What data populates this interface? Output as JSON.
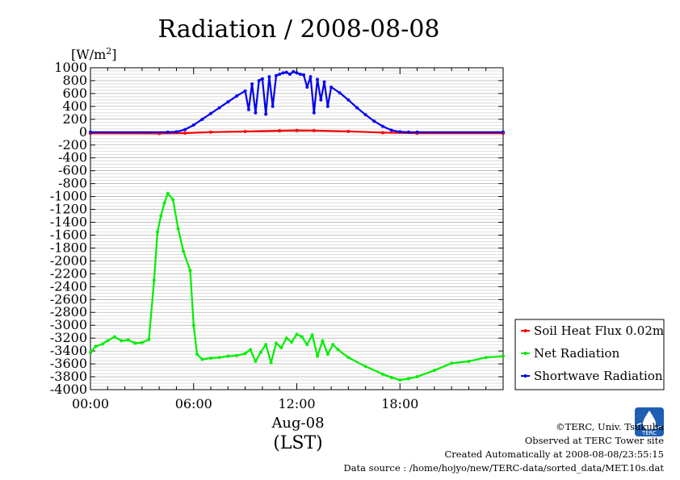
{
  "title": "Radiation / 2008-08-08",
  "y_unit_label": "[W/m",
  "y_unit_sup": "2",
  "y_unit_close": "]",
  "x_date_label": "Aug-08",
  "x_tz_label": "(LST)",
  "footer": {
    "copyright": "©TERC, Univ. Tsukuba",
    "observed": "Observed at TERC Tower site",
    "created": "Created Automatically at 2008-08-08/23:55:15",
    "source": "Data source : /home/hojyo/new/TERC-data/sorted_data/MET.10s.dat",
    "logo_text": "TERC"
  },
  "chart_data": {
    "type": "line",
    "title": "Radiation / 2008-08-08",
    "xlabel": "Aug-08 (LST)",
    "ylabel": "[W/m2]",
    "xlim": [
      0,
      24
    ],
    "ylim": [
      -4000,
      1000
    ],
    "x_ticks": [
      0,
      6,
      12,
      18
    ],
    "x_tick_labels": [
      "00:00",
      "06:00",
      "12:00",
      "18:00"
    ],
    "y_ticks": [
      1000,
      800,
      600,
      400,
      200,
      0,
      -200,
      -400,
      -600,
      -800,
      -1000,
      -1200,
      -1400,
      -1600,
      -1800,
      -2000,
      -2200,
      -2400,
      -2600,
      -2800,
      -3000,
      -3200,
      -3400,
      -3600,
      -3800,
      -4000
    ],
    "grid": true,
    "legend_position": "bottom-right-outside",
    "series": [
      {
        "name": "Soil Heat Flux 0.02m",
        "color": "#ff0000",
        "x": [
          0,
          4,
          5.5,
          7,
          9,
          11,
          12,
          13,
          15,
          17,
          19,
          24
        ],
        "y": [
          -18,
          -20,
          -15,
          0,
          10,
          22,
          28,
          25,
          12,
          -8,
          -18,
          -18
        ]
      },
      {
        "name": "Net Radiation",
        "color": "#00ee00",
        "x": [
          0,
          0.3,
          0.7,
          1,
          1.4,
          1.8,
          2.2,
          2.6,
          3,
          3.4,
          3.7,
          3.9,
          4.1,
          4.3,
          4.5,
          4.8,
          5.1,
          5.4,
          5.8,
          6.0,
          6.2,
          6.5,
          7,
          7.5,
          8,
          8.5,
          9,
          9.3,
          9.6,
          9.9,
          10.2,
          10.5,
          10.8,
          11.1,
          11.4,
          11.7,
          12,
          12.3,
          12.6,
          12.9,
          13.2,
          13.5,
          13.8,
          14.1,
          14.4,
          15,
          16,
          17,
          17.5,
          18,
          18.5,
          19,
          20,
          21,
          22,
          23,
          24
        ],
        "y": [
          -3420,
          -3330,
          -3290,
          -3240,
          -3180,
          -3240,
          -3230,
          -3280,
          -3270,
          -3220,
          -2300,
          -1550,
          -1300,
          -1100,
          -950,
          -1050,
          -1500,
          -1850,
          -2150,
          -3000,
          -3450,
          -3530,
          -3510,
          -3500,
          -3480,
          -3470,
          -3440,
          -3380,
          -3560,
          -3420,
          -3300,
          -3580,
          -3280,
          -3350,
          -3200,
          -3260,
          -3140,
          -3180,
          -3300,
          -3150,
          -3480,
          -3240,
          -3450,
          -3300,
          -3380,
          -3500,
          -3640,
          -3760,
          -3810,
          -3850,
          -3830,
          -3800,
          -3700,
          -3590,
          -3560,
          -3500,
          -3480
        ]
      },
      {
        "name": "Shortwave Radiation",
        "color": "#0000ee",
        "x": [
          0,
          4.5,
          5,
          5.5,
          6,
          6.5,
          7,
          7.5,
          8,
          8.5,
          9,
          9.2,
          9.4,
          9.6,
          9.8,
          10,
          10.2,
          10.4,
          10.6,
          10.8,
          11,
          11.2,
          11.4,
          11.6,
          11.8,
          12,
          12.2,
          12.4,
          12.6,
          12.8,
          13,
          13.2,
          13.4,
          13.6,
          13.8,
          14,
          14.5,
          15,
          15.5,
          16,
          16.5,
          17,
          17.5,
          18,
          18.5,
          19,
          24
        ],
        "y": [
          0,
          0,
          5,
          40,
          110,
          200,
          290,
          380,
          470,
          560,
          640,
          350,
          750,
          300,
          800,
          830,
          280,
          860,
          400,
          880,
          900,
          920,
          930,
          900,
          940,
          920,
          900,
          890,
          700,
          860,
          300,
          820,
          500,
          780,
          400,
          700,
          610,
          500,
          380,
          270,
          170,
          90,
          30,
          5,
          0,
          0,
          0
        ]
      }
    ]
  }
}
